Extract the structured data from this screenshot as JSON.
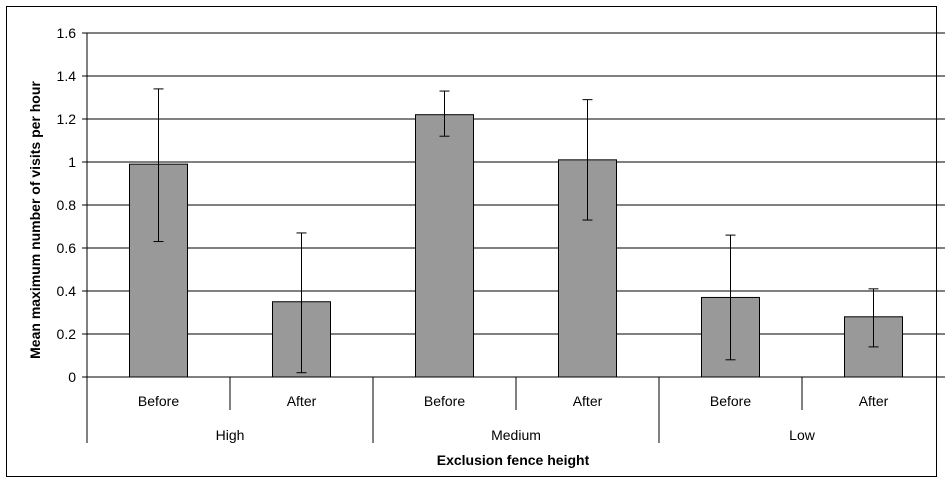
{
  "chart_data": {
    "type": "bar",
    "groups": [
      "High",
      "Medium",
      "Low"
    ],
    "categories": [
      "Before",
      "After",
      "Before",
      "After",
      "Before",
      "After"
    ],
    "values": [
      0.99,
      0.35,
      1.22,
      1.01,
      0.37,
      0.28
    ],
    "error_low": [
      0.63,
      0.02,
      1.12,
      0.73,
      0.08,
      0.14
    ],
    "error_high": [
      1.34,
      0.67,
      1.33,
      1.29,
      0.66,
      0.41
    ],
    "ylabel": "Mean maximum number of visits per hour",
    "xlabel": "Exclusion fence height",
    "ylim": [
      0,
      1.6
    ],
    "yticks": [
      "0",
      "0.2",
      "0.4",
      "0.6",
      "0.8",
      "1",
      "1.2",
      "1.4",
      "1.6"
    ],
    "grid": true,
    "bar_color": "#999999"
  }
}
